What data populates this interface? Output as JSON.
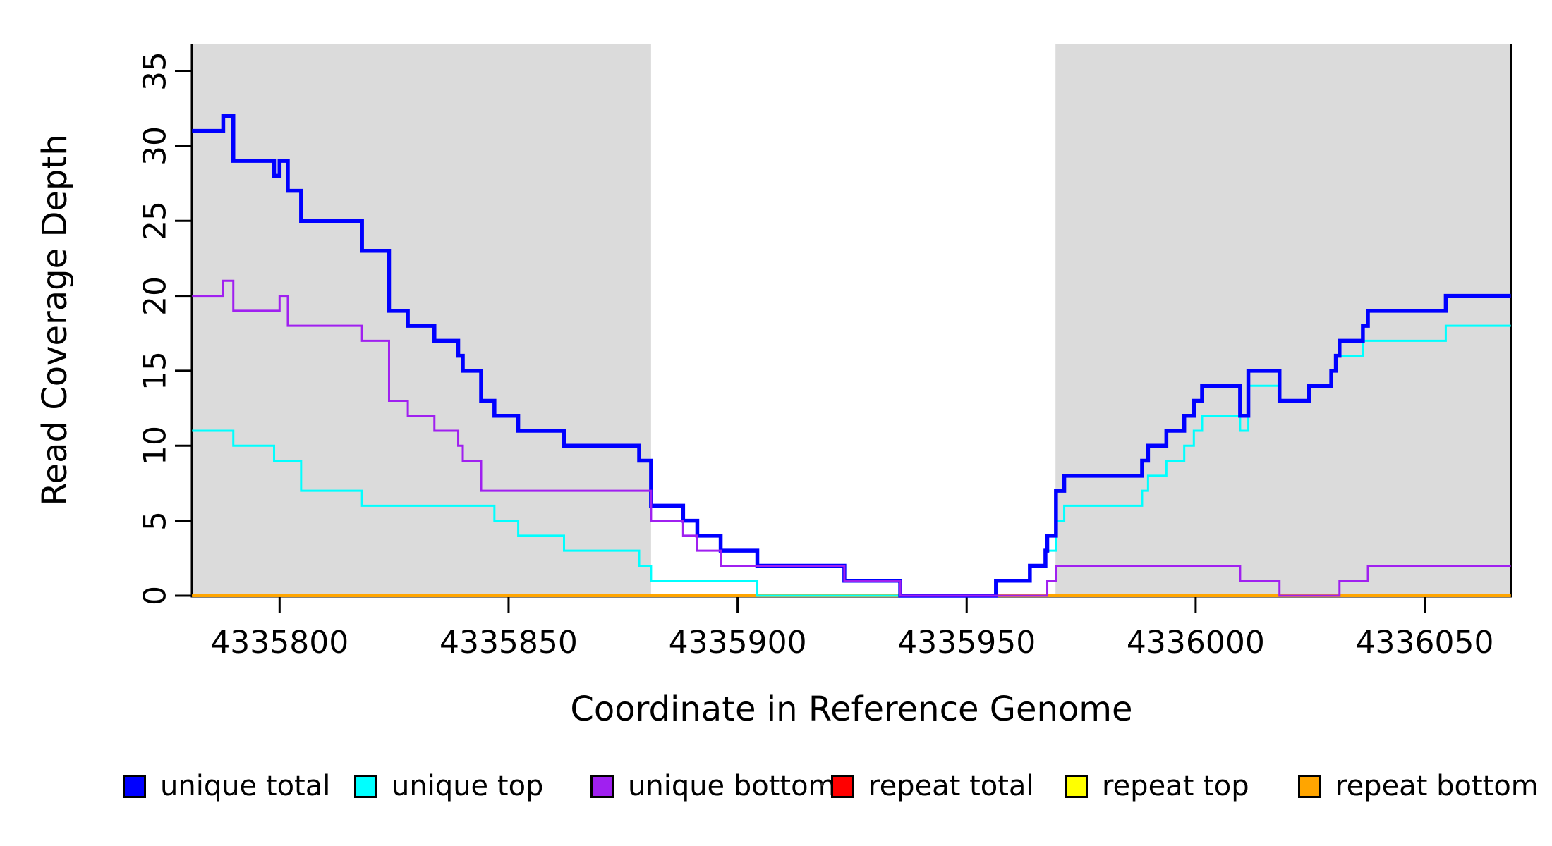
{
  "y_axis": {
    "title": "Read Coverage Depth",
    "ticks": [
      {
        "label": "0",
        "value": 0
      },
      {
        "label": "5",
        "value": 5
      },
      {
        "label": "10",
        "value": 10
      },
      {
        "label": "15",
        "value": 15
      },
      {
        "label": "20",
        "value": 20
      },
      {
        "label": "25",
        "value": 25
      },
      {
        "label": "30",
        "value": 30
      },
      {
        "label": "35",
        "value": 35
      }
    ]
  },
  "x_axis": {
    "title": "Coordinate in Reference Genome",
    "ticks": [
      {
        "label": "4335800",
        "value": 4335800
      },
      {
        "label": "4335850",
        "value": 4335850
      },
      {
        "label": "4335900",
        "value": 4335900
      },
      {
        "label": "4335950",
        "value": 4335950
      },
      {
        "label": "4336000",
        "value": 4336000
      },
      {
        "label": "4336050",
        "value": 4336050
      }
    ]
  },
  "legend": {
    "items": [
      {
        "label": "unique total",
        "color": "#0000FF"
      },
      {
        "label": "unique top",
        "color": "#00FFFF"
      },
      {
        "label": "unique bottom",
        "color": "#A020F0"
      },
      {
        "label": "repeat total",
        "color": "#FF0000"
      },
      {
        "label": "repeat top",
        "color": "#FFFF00"
      },
      {
        "label": "repeat bottom",
        "color": "#FFA500"
      }
    ]
  },
  "chart_data": {
    "type": "line",
    "subtype": "step",
    "title": "",
    "xlabel": "Coordinate in Reference Genome",
    "ylabel": "Read Coverage Depth",
    "xlim": [
      4335780.9,
      4336068.8
    ],
    "ylim": [
      0,
      36.8
    ],
    "grid": false,
    "legend_position": "bottom",
    "background_color": "#FFFFFF",
    "shaded_region_color": "#DBDBDB",
    "shaded_regions": [
      {
        "x_start": 4335780.9,
        "x_end": 4335881.1
      },
      {
        "x_start": 4335969.4,
        "x_end": 4336068.8
      }
    ],
    "series": [
      {
        "name": "unique total",
        "color": "#0000FF",
        "points": [
          [
            4335780.9,
            31
          ],
          [
            4335787.7,
            32
          ],
          [
            4335789.9,
            29
          ],
          [
            4335798.8,
            28
          ],
          [
            4335800.0,
            29
          ],
          [
            4335801.8,
            27
          ],
          [
            4335804.7,
            25
          ],
          [
            4335818.0,
            23
          ],
          [
            4335823.9,
            19
          ],
          [
            4335828.0,
            18
          ],
          [
            4335833.8,
            17
          ],
          [
            4335839.0,
            16
          ],
          [
            4335840.0,
            15
          ],
          [
            4335844.0,
            13
          ],
          [
            4335846.9,
            12
          ],
          [
            4335852.1,
            11
          ],
          [
            4335862.1,
            10
          ],
          [
            4335878.5,
            9
          ],
          [
            4335881.1,
            6
          ],
          [
            4335888.1,
            5
          ],
          [
            4335891.2,
            4
          ],
          [
            4335896.3,
            3
          ],
          [
            4335904.3,
            2
          ],
          [
            4335923.3,
            1
          ],
          [
            4335935.5,
            0
          ],
          [
            4335956.4,
            1
          ],
          [
            4335963.8,
            2
          ],
          [
            4335967.2,
            3
          ],
          [
            4335967.6,
            4
          ],
          [
            4335969.5,
            7
          ],
          [
            4335971.3,
            8
          ],
          [
            4335988.3,
            9
          ],
          [
            4335989.6,
            10
          ],
          [
            4335993.6,
            11
          ],
          [
            4335997.5,
            12
          ],
          [
            4335999.6,
            13
          ],
          [
            4336001.4,
            14
          ],
          [
            4336009.7,
            12
          ],
          [
            4336011.5,
            15
          ],
          [
            4336018.3,
            13
          ],
          [
            4336024.7,
            14
          ],
          [
            4336029.6,
            15
          ],
          [
            4336030.6,
            16
          ],
          [
            4336031.4,
            17
          ],
          [
            4336036.5,
            18
          ],
          [
            4336037.6,
            19
          ],
          [
            4336054.6,
            20
          ],
          [
            4336068.8,
            20
          ]
        ]
      },
      {
        "name": "unique top",
        "color": "#00FFFF",
        "points": [
          [
            4335780.9,
            11
          ],
          [
            4335789.9,
            10
          ],
          [
            4335798.8,
            9
          ],
          [
            4335804.7,
            7
          ],
          [
            4335818.0,
            6
          ],
          [
            4335846.9,
            5
          ],
          [
            4335852.1,
            4
          ],
          [
            4335862.1,
            3
          ],
          [
            4335878.5,
            2
          ],
          [
            4335881.1,
            1
          ],
          [
            4335904.3,
            0
          ],
          [
            4335956.4,
            1
          ],
          [
            4335963.8,
            2
          ],
          [
            4335967.2,
            3
          ],
          [
            4335969.5,
            5
          ],
          [
            4335971.3,
            6
          ],
          [
            4335988.3,
            7
          ],
          [
            4335989.6,
            8
          ],
          [
            4335993.6,
            9
          ],
          [
            4335997.5,
            10
          ],
          [
            4335999.6,
            11
          ],
          [
            4336001.4,
            12
          ],
          [
            4336009.7,
            11
          ],
          [
            4336011.5,
            14
          ],
          [
            4336018.3,
            13
          ],
          [
            4336024.7,
            14
          ],
          [
            4336029.6,
            15
          ],
          [
            4336030.6,
            16
          ],
          [
            4336036.5,
            17
          ],
          [
            4336054.6,
            18
          ],
          [
            4336068.8,
            18
          ]
        ]
      },
      {
        "name": "unique bottom",
        "color": "#A020F0",
        "points": [
          [
            4335780.9,
            20
          ],
          [
            4335787.7,
            21
          ],
          [
            4335789.9,
            19
          ],
          [
            4335800.0,
            20
          ],
          [
            4335801.8,
            18
          ],
          [
            4335818.0,
            17
          ],
          [
            4335823.9,
            13
          ],
          [
            4335828.0,
            12
          ],
          [
            4335833.8,
            11
          ],
          [
            4335839.0,
            10
          ],
          [
            4335840.0,
            9
          ],
          [
            4335844.0,
            7
          ],
          [
            4335881.1,
            5
          ],
          [
            4335888.1,
            4
          ],
          [
            4335891.2,
            3
          ],
          [
            4335896.3,
            2
          ],
          [
            4335923.3,
            1
          ],
          [
            4335935.5,
            0
          ],
          [
            4335967.6,
            1
          ],
          [
            4335969.5,
            2
          ],
          [
            4336009.7,
            1
          ],
          [
            4336018.3,
            0
          ],
          [
            4336031.4,
            1
          ],
          [
            4336037.6,
            2
          ],
          [
            4336068.8,
            2
          ]
        ]
      },
      {
        "name": "repeat total",
        "color": "#FF0000",
        "points": [
          [
            4335780.9,
            0
          ],
          [
            4336068.8,
            0
          ]
        ]
      },
      {
        "name": "repeat top",
        "color": "#FFFF00",
        "points": [
          [
            4335780.9,
            0
          ],
          [
            4336068.8,
            0
          ]
        ]
      },
      {
        "name": "repeat bottom",
        "color": "#FFA500",
        "points": [
          [
            4335780.9,
            0
          ],
          [
            4336068.8,
            0
          ]
        ]
      }
    ]
  }
}
